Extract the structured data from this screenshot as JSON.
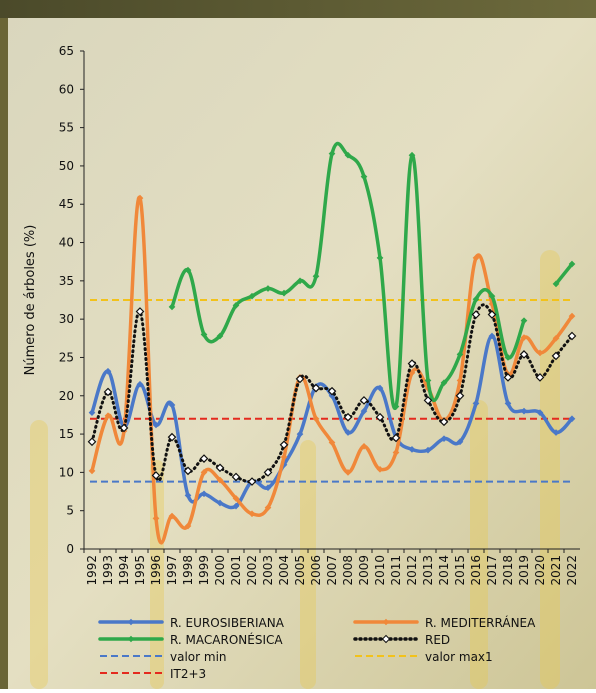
{
  "chart_data": {
    "type": "line",
    "y_label": "Número de árboles (%)",
    "categories": [
      "1992",
      "1993",
      "1994",
      "1995",
      "1996",
      "1997",
      "1998",
      "1999",
      "2000",
      "2001",
      "2002",
      "2003",
      "2004",
      "2005",
      "2006",
      "2007",
      "2008",
      "2009",
      "2010",
      "2011",
      "2012",
      "2013",
      "2014",
      "2015",
      "2016",
      "2017",
      "2018",
      "2019",
      "2020",
      "2021",
      "2022"
    ],
    "ylim": [
      0,
      65
    ],
    "yticks": [
      0,
      5,
      10,
      15,
      20,
      25,
      30,
      35,
      40,
      45,
      50,
      55,
      60,
      65
    ],
    "series": [
      {
        "name": "R. EUROSIBERIANA",
        "color": "#4a78c8",
        "values": [
          17.8,
          23.2,
          16,
          21.5,
          16.2,
          18.8,
          7,
          7.2,
          6,
          5.6,
          8.8,
          8,
          11,
          15,
          21.2,
          20,
          15.2,
          18,
          21,
          14.6,
          13,
          12.9,
          14.4,
          14,
          19,
          27.8,
          19,
          18,
          17.8,
          15.2,
          17
        ]
      },
      {
        "name": "R. MEDITERRÁNEA",
        "color": "#f0883a",
        "values": [
          10.2,
          17.4,
          15.4,
          45.8,
          4,
          4.3,
          3,
          10,
          9,
          6.6,
          4.6,
          5.4,
          12,
          22.4,
          17,
          13.9,
          10,
          13.4,
          10.4,
          12.6,
          23,
          21,
          16.8,
          22,
          38,
          32,
          22.8,
          27.6,
          25.6,
          27.5,
          30.4
        ]
      },
      {
        "name": "R. MACARONÉSICA",
        "color": "#2fa84a",
        "values": [
          null,
          null,
          null,
          null,
          null,
          31.6,
          36.4,
          28,
          27.8,
          31.8,
          33,
          34,
          33.4,
          35,
          35.6,
          51.6,
          51.4,
          48.6,
          38,
          18.6,
          51.4,
          22,
          21.7,
          25.4,
          32.6,
          33,
          25,
          29.8,
          null,
          34.6,
          37.2
        ]
      },
      {
        "name": "RED",
        "color": "#111111",
        "dotted": true,
        "values": [
          14,
          20.5,
          15.8,
          31,
          9.6,
          14.6,
          10.2,
          11.8,
          10.6,
          9.4,
          8.8,
          10,
          13.6,
          22.2,
          21,
          20.6,
          17.2,
          19.4,
          17.2,
          14.5,
          24.2,
          19.4,
          16.6,
          20,
          30.6,
          30.6,
          22.4,
          25.4,
          22.4,
          25.2,
          27.8
        ]
      }
    ],
    "hlines": [
      {
        "name": "valor min",
        "color": "#4a78c8",
        "value": 8.8
      },
      {
        "name": "valor max1",
        "color": "#f2c21a",
        "value": 32.5
      },
      {
        "name": "IT2+3",
        "color": "#e42a1e",
        "value": 17
      }
    ]
  }
}
